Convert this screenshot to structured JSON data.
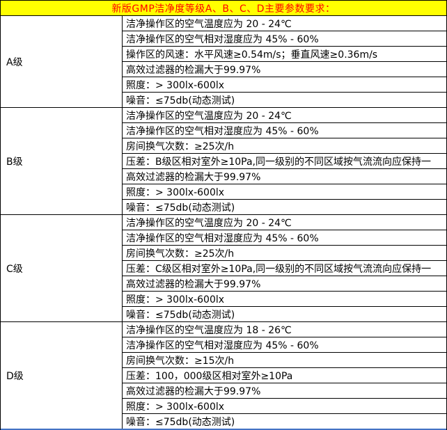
{
  "header": {
    "title": "新版GMP洁净度等级A、B、C、D主要参数要求：",
    "bg_color": "#ffff00",
    "text_color": "#ff0000"
  },
  "sections": [
    {
      "grade": "A级",
      "rows": [
        "洁净操作区的空气温度应为 20 - 24℃",
        "洁净操作区的空气相对湿度应为 45% - 60%",
        "操作区的风速：水平风速≥0.54m/s；垂直风速≥0.36m/s",
        "高效过滤器的检漏大于99.97%",
        "照度：> 300lx-600lx",
        "噪音：≤75db(动态测试)"
      ]
    },
    {
      "grade": "B级",
      "rows": [
        "洁净操作区的空气温度应为 20 - 24℃",
        "洁净操作区的空气相对湿度应为 45% - 60%",
        "房间换气次数：≥25次/h",
        "压差：B级区相对室外≥10Pa,同一级别的不同区域按气流流向应保持一",
        "高效过滤器的检漏大于99.97%",
        "照度：> 300lx-600lx",
        "噪音：≤75db(动态测试)"
      ]
    },
    {
      "grade": "C级",
      "rows": [
        "洁净操作区的空气温度应为 20 - 24℃",
        "洁净操作区的空气相对湿度应为 45% - 60%",
        "房间换气次数：≥25次/h",
        "压差：C级区相对室外≥10Pa,同一级别的不同区域按气流流向应保持一",
        "高效过滤器的检漏大于99.97%",
        "照度：> 300lx-600lx",
        "噪音：≤75db(动态测试)"
      ]
    },
    {
      "grade": "D级",
      "rows": [
        "洁净操作区的空气温度应为 18 - 26℃",
        "洁净操作区的空气相对湿度应为 45% - 60%",
        "房间换气次数：≥15次/h",
        "压差：100，000级区相对室外≥10Pa",
        "高效过滤器的检漏大于99.97%",
        "照度：> 300lx-600lx",
        "噪音：≤75db(动态测试)"
      ]
    }
  ],
  "colors": {
    "grid_border": "#000000",
    "bottom_edge_line": "#4472c4"
  }
}
